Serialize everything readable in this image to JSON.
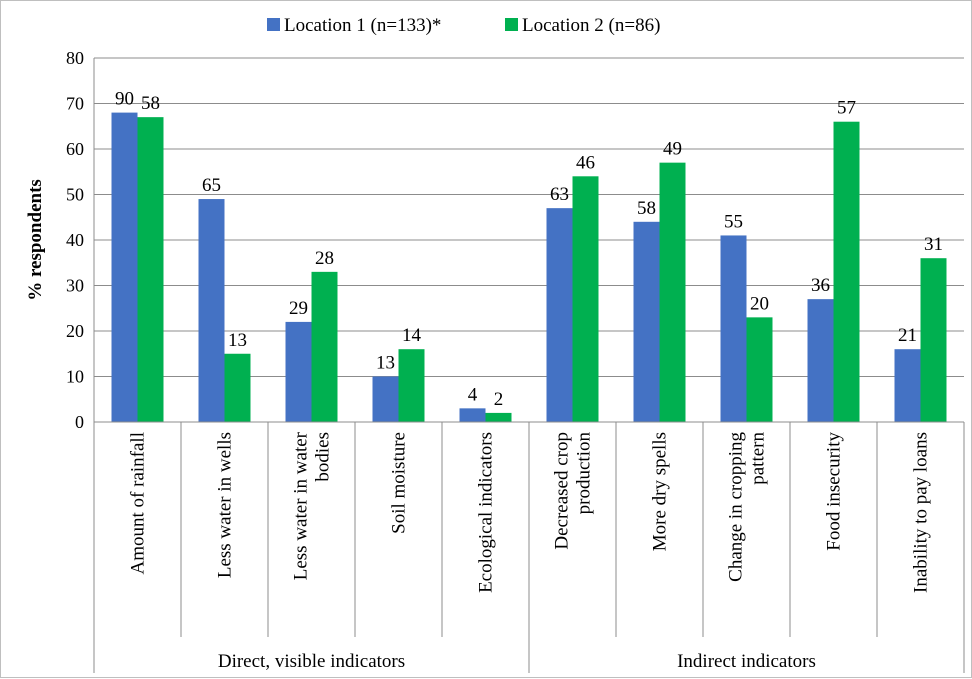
{
  "chart_data": {
    "type": "bar",
    "title": "",
    "ylabel": "% respondents",
    "xlabel": "",
    "ylim": [
      0,
      80
    ],
    "yticks": [
      0,
      10,
      20,
      30,
      40,
      50,
      60,
      70,
      80
    ],
    "grid": true,
    "legend_position": "top-center",
    "categories": [
      "Amount of rainfall",
      "Less water in wells",
      "Less water in water bodies",
      "Soil moisture",
      "Ecological indicators",
      "Decreased crop production",
      "More dry spells",
      "Change in cropping pattern",
      "Food insecurity",
      "Inability to pay loans"
    ],
    "groups": [
      {
        "label": "Direct, visible indicators",
        "start": 0,
        "end": 4
      },
      {
        "label": "Indirect indicators",
        "start": 5,
        "end": 9
      }
    ],
    "series": [
      {
        "name": "Location 1 (n=133)*",
        "color": "#4472c4",
        "values": [
          68,
          49,
          22,
          10,
          3,
          47,
          44,
          41,
          27,
          16
        ],
        "labels": [
          "90",
          "65",
          "29",
          "13",
          "4",
          "63",
          "58",
          "55",
          "36",
          "21"
        ]
      },
      {
        "name": "Location 2 (n=86)",
        "color": "#00b050",
        "values": [
          67,
          15,
          33,
          16,
          2,
          54,
          57,
          23,
          66,
          36
        ],
        "labels": [
          "58",
          "13",
          "28",
          "14",
          "2",
          "46",
          "49",
          "20",
          "57",
          "31"
        ]
      }
    ]
  }
}
